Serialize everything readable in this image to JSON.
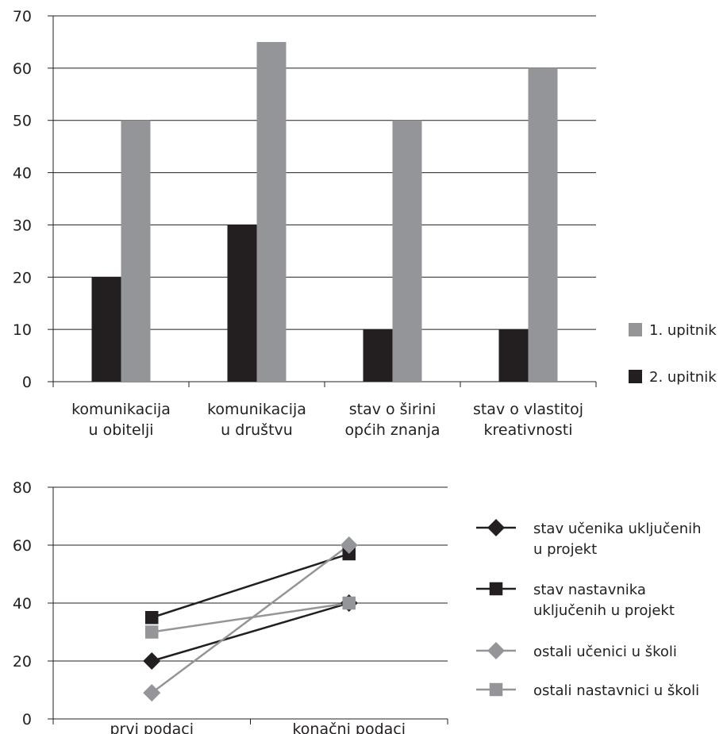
{
  "chart_data": [
    {
      "type": "bar",
      "categories": [
        [
          "komunikacija",
          "u obitelji"
        ],
        [
          "komunikacija",
          "u društvu"
        ],
        [
          "stav o širini",
          "općih znanja"
        ],
        [
          "stav o vlastitoj",
          "kreativnosti"
        ]
      ],
      "series": [
        {
          "name": "2. upitnik",
          "values": [
            20,
            30,
            10,
            10
          ],
          "color": "#231f20"
        },
        {
          "name": "1. upitnik",
          "values": [
            50,
            65,
            50,
            60
          ],
          "color": "#939598"
        }
      ],
      "legend_order": [
        1,
        0
      ],
      "ylim": [
        0,
        70
      ],
      "yticks": [
        "0",
        "10",
        "20",
        "30",
        "40",
        "50",
        "60",
        "70"
      ],
      "grid": true,
      "legend_position": "right"
    },
    {
      "type": "line",
      "categories": [
        "prvi podaci",
        "konačni podaci"
      ],
      "series": [
        {
          "name": [
            "stav učenika uključenih",
            "u projekt"
          ],
          "values": [
            20,
            40
          ],
          "color": "#231f20",
          "marker": "diamond"
        },
        {
          "name": [
            "stav nastavnika",
            "uključenih u projekt"
          ],
          "values": [
            35,
            57
          ],
          "color": "#231f20",
          "marker": "square"
        },
        {
          "name": [
            "ostali učenici u školi"
          ],
          "values": [
            9,
            60
          ],
          "color": "#939598",
          "marker": "diamond"
        },
        {
          "name": [
            "ostali nastavnici u školi"
          ],
          "values": [
            30,
            40
          ],
          "color": "#939598",
          "marker": "square"
        }
      ],
      "ylim": [
        0,
        80
      ],
      "yticks": [
        "0",
        "20",
        "40",
        "60",
        "80"
      ],
      "grid": true,
      "legend_position": "right"
    }
  ]
}
